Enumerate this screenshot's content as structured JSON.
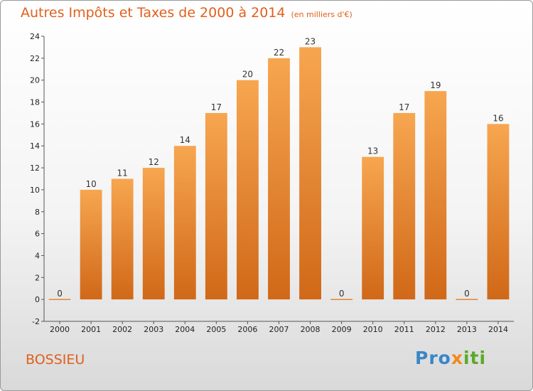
{
  "header": {
    "title": "Autres Impôts et Taxes de 2000 à 2014",
    "subtitle": "(en milliers d'€)"
  },
  "footer": {
    "commune": "BOSSIEU",
    "logo": {
      "part1": "Pro",
      "part2": "x",
      "part3": "iti"
    }
  },
  "colors": {
    "bar": "#f08c2c",
    "bar_light": "#f7a650",
    "bar_dark": "#d06818",
    "title": "#e0601c"
  },
  "chart_data": {
    "type": "bar",
    "title": "Autres Impôts et Taxes de 2000 à 2014",
    "subtitle": "(en milliers d'€)",
    "xlabel": "",
    "ylabel": "",
    "categories": [
      "2000",
      "2001",
      "2002",
      "2003",
      "2004",
      "2005",
      "2006",
      "2007",
      "2008",
      "2009",
      "2010",
      "2011",
      "2012",
      "2013",
      "2014"
    ],
    "values": [
      0,
      10,
      11,
      12,
      14,
      17,
      20,
      22,
      23,
      0,
      13,
      17,
      19,
      0,
      16
    ],
    "ylim": [
      -2,
      24
    ],
    "yticks": [
      -2,
      0,
      2,
      4,
      6,
      8,
      10,
      12,
      14,
      16,
      18,
      20,
      22,
      24
    ],
    "grid": false,
    "legend": "none"
  }
}
